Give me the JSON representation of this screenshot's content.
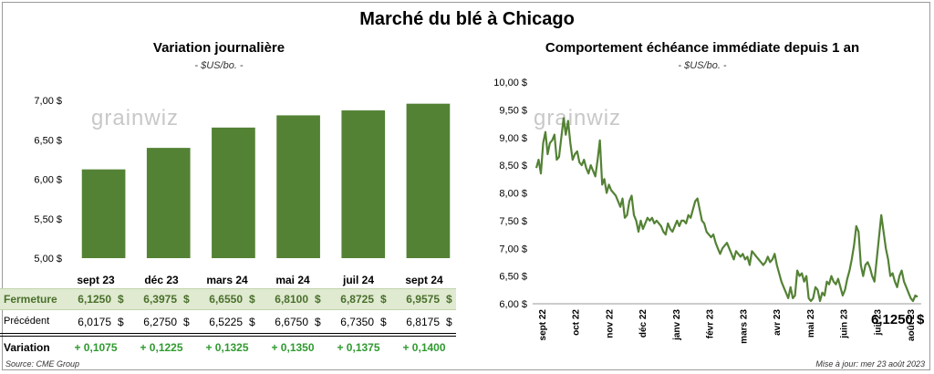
{
  "main_title": "Marché du blé à Chicago",
  "left_chart": {
    "title": "Variation  journalière",
    "subtitle": "- $US/bo. -",
    "logo_text": "grainwiz"
  },
  "right_chart": {
    "title": "Comportement  échéance immédiate depuis 1 an",
    "subtitle": "- $US/bo. -",
    "logo_text": "grainwiz",
    "last_value_label": "6,1250 $"
  },
  "table": {
    "rows": [
      {
        "label": "Fermeture",
        "values": [
          "6,1250",
          "6,3975",
          "6,6550",
          "6,8100",
          "6,8725",
          "6,9575"
        ],
        "unit": "$"
      },
      {
        "label": "Précédent",
        "values": [
          "6,0175",
          "6,2750",
          "6,5225",
          "6,6750",
          "6,7350",
          "6,8175"
        ],
        "unit": "$"
      },
      {
        "label": "Variation",
        "values": [
          "+ 0,1075",
          "+ 0,1225",
          "+ 0,1325",
          "+ 0,1350",
          "+ 0,1375",
          "+ 0,1400"
        ]
      }
    ]
  },
  "footer": {
    "source": "Source: CME Group",
    "updated": "Mise à jour: mer 23 août 2023"
  },
  "colors": {
    "bar": "#548235",
    "line": "#548235",
    "highlight_row": "#dfead0",
    "positive": "#2f9a2f"
  },
  "chart_data": [
    {
      "type": "bar",
      "title": "Variation  journalière",
      "subtitle": "- $US/bo. -",
      "categories": [
        "sept 23",
        "déc 23",
        "mars 24",
        "mai 24",
        "juil 24",
        "sept 24"
      ],
      "values": [
        6.125,
        6.3975,
        6.655,
        6.81,
        6.8725,
        6.9575
      ],
      "ylim": [
        5.0,
        7.0
      ],
      "yticks": [
        "5,00 $",
        "5,50 $",
        "6,00 $",
        "6,50 $",
        "7,00 $"
      ],
      "yticks_values": [
        5.0,
        5.5,
        6.0,
        6.5,
        7.0
      ],
      "grid": false,
      "legend": "none"
    },
    {
      "type": "line",
      "title": "Comportement  échéance immédiate depuis 1 an",
      "subtitle": "- $US/bo. -",
      "x_tick_labels": [
        "sept 22",
        "oct 22",
        "nov 22",
        "déc 22",
        "janv 23",
        "févr 23",
        "mars 23",
        "avr 23",
        "mai 23",
        "juin 23",
        "juil 23",
        "août 23"
      ],
      "ylim": [
        6.0,
        10.0
      ],
      "yticks": [
        "6,00 $",
        "6,50 $",
        "7,00 $",
        "7,50 $",
        "8,00 $",
        "8,50 $",
        "9,00 $",
        "9,50 $",
        "10,00 $"
      ],
      "yticks_values": [
        6.0,
        6.5,
        7.0,
        7.5,
        8.0,
        8.5,
        9.0,
        9.5,
        10.0
      ],
      "grid": false,
      "legend": "none",
      "series": [
        {
          "values": [
            8.45,
            8.6,
            8.35,
            8.9,
            9.1,
            8.7,
            8.9,
            8.95,
            9.05,
            8.6,
            8.65,
            9.0,
            9.35,
            9.05,
            9.3,
            8.9,
            8.6,
            8.7,
            8.75,
            8.55,
            8.5,
            8.6,
            8.45,
            8.35,
            8.5,
            8.4,
            8.3,
            8.6,
            8.95,
            8.15,
            8.25,
            8.0,
            8.15,
            8.05,
            8.0,
            7.95,
            7.85,
            7.75,
            7.9,
            7.55,
            7.6,
            7.85,
            7.95,
            7.6,
            7.5,
            7.3,
            7.5,
            7.35,
            7.45,
            7.55,
            7.5,
            7.55,
            7.45,
            7.5,
            7.45,
            7.4,
            7.3,
            7.25,
            7.45,
            7.35,
            7.3,
            7.4,
            7.5,
            7.4,
            7.5,
            7.5,
            7.45,
            7.6,
            7.55,
            7.7,
            7.85,
            7.9,
            7.7,
            7.5,
            7.45,
            7.3,
            7.25,
            7.2,
            7.25,
            7.1,
            7.0,
            6.9,
            7.0,
            7.05,
            7.1,
            7.0,
            6.9,
            6.8,
            6.95,
            6.9,
            6.85,
            6.9,
            6.8,
            6.85,
            6.7,
            6.95,
            6.9,
            6.85,
            6.8,
            6.75,
            6.7,
            6.75,
            6.85,
            6.75,
            6.8,
            6.9,
            6.7,
            6.55,
            6.4,
            6.3,
            6.2,
            6.1,
            6.3,
            6.1,
            6.15,
            6.6,
            6.5,
            6.55,
            6.4,
            6.5,
            6.1,
            6.05,
            6.1,
            6.3,
            6.25,
            6.05,
            6.2,
            6.15,
            6.4,
            6.35,
            6.5,
            6.4,
            6.35,
            6.45,
            6.3,
            6.15,
            6.25,
            6.45,
            6.6,
            6.8,
            7.05,
            7.4,
            7.3,
            6.7,
            6.5,
            6.7,
            6.75,
            6.65,
            6.5,
            6.4,
            6.8,
            7.2,
            7.6,
            7.3,
            7.0,
            6.8,
            6.5,
            6.55,
            6.4,
            6.3,
            6.5,
            6.6,
            6.4,
            6.3,
            6.2,
            6.1,
            6.05,
            6.15,
            6.125
          ]
        }
      ]
    }
  ]
}
